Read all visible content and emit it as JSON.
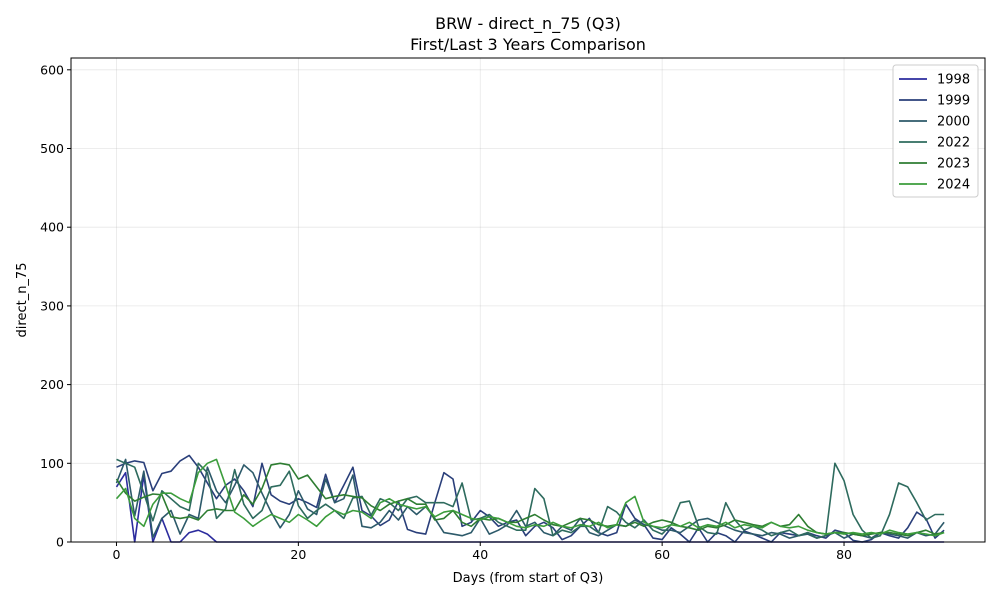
{
  "chart_data": {
    "type": "line",
    "title": "BRW - direct_n_75 (Q3)",
    "subtitle": "First/Last 3 Years Comparison",
    "xlabel": "Days (from start of Q3)",
    "ylabel": "direct_n_75",
    "xlim": [
      -5,
      95.5
    ],
    "ylim": [
      0,
      615
    ],
    "xticks": [
      0,
      20,
      40,
      60,
      80
    ],
    "yticks": [
      0,
      100,
      200,
      300,
      400,
      500,
      600
    ],
    "grid": true,
    "legend_position": "top-right",
    "series": [
      {
        "name": "1998",
        "color": "#2c2c9e",
        "values": [
          70,
          88,
          0,
          85,
          0,
          30,
          0,
          0,
          12,
          15,
          10,
          0,
          0,
          0,
          0,
          0,
          0,
          0,
          0,
          0,
          0,
          0,
          0,
          0,
          0,
          0,
          0,
          0,
          0,
          0,
          0,
          0,
          0,
          0,
          0,
          0,
          0,
          0,
          0,
          0,
          0,
          0,
          0,
          0,
          0,
          0,
          0,
          0,
          0,
          0,
          0,
          0,
          0,
          0,
          0,
          0,
          0,
          0,
          0,
          0,
          0,
          0,
          0,
          0,
          0,
          0,
          0,
          0,
          0,
          0,
          0,
          0,
          0,
          0,
          0,
          0,
          0,
          0,
          0,
          0,
          0,
          0,
          0,
          0,
          0,
          0,
          0,
          0,
          0,
          0,
          0,
          0
        ]
      },
      {
        "name": "1999",
        "color": "#2a3f7a",
        "values": [
          95,
          100,
          103,
          101,
          65,
          87,
          90,
          103,
          110,
          95,
          75,
          55,
          72,
          80,
          65,
          45,
          100,
          60,
          52,
          48,
          55,
          50,
          44,
          86,
          50,
          72,
          95,
          40,
          33,
          21,
          28,
          52,
          16,
          12,
          10,
          50,
          88,
          80,
          20,
          25,
          40,
          32,
          20,
          25,
          28,
          8,
          20,
          25,
          18,
          3,
          8,
          20,
          30,
          12,
          8,
          12,
          48,
          30,
          22,
          5,
          3,
          18,
          10,
          0,
          18,
          0,
          12,
          8,
          0,
          14,
          10,
          5,
          0,
          12,
          10,
          8,
          12,
          8,
          5,
          15,
          12,
          2,
          0,
          3,
          12,
          8,
          5,
          18,
          38,
          30,
          5,
          15
        ]
      },
      {
        "name": "2000",
        "color": "#2d5a6a",
        "values": [
          75,
          105,
          33,
          90,
          6,
          30,
          40,
          10,
          35,
          30,
          95,
          65,
          50,
          72,
          98,
          88,
          62,
          38,
          18,
          35,
          65,
          42,
          35,
          80,
          50,
          55,
          85,
          20,
          18,
          25,
          40,
          28,
          45,
          35,
          45,
          30,
          12,
          10,
          8,
          12,
          30,
          10,
          15,
          22,
          40,
          20,
          25,
          12,
          8,
          20,
          15,
          30,
          12,
          8,
          15,
          22,
          20,
          28,
          22,
          20,
          15,
          15,
          12,
          20,
          28,
          30,
          25,
          20,
          15,
          12,
          10,
          8,
          12,
          10,
          5,
          8,
          10,
          5,
          8,
          12,
          5,
          10,
          8,
          5,
          12,
          10,
          8,
          5,
          12,
          8,
          10,
          25
        ]
      },
      {
        "name": "2022",
        "color": "#2e6b5e",
        "values": [
          105,
          100,
          95,
          62,
          27,
          65,
          55,
          45,
          40,
          100,
          88,
          30,
          42,
          92,
          48,
          30,
          40,
          70,
          72,
          90,
          46,
          30,
          40,
          48,
          40,
          30,
          56,
          58,
          34,
          55,
          50,
          40,
          55,
          58,
          50,
          50,
          50,
          45,
          75,
          28,
          30,
          35,
          25,
          20,
          15,
          15,
          68,
          55,
          8,
          15,
          12,
          20,
          20,
          12,
          45,
          38,
          25,
          18,
          28,
          15,
          10,
          22,
          50,
          52,
          20,
          12,
          10,
          50,
          28,
          15,
          20,
          15,
          8,
          12,
          15,
          8,
          12,
          5,
          8,
          100,
          78,
          35,
          15,
          5,
          8,
          35,
          75,
          70,
          50,
          28,
          35,
          35
        ]
      },
      {
        "name": "2023",
        "color": "#2e7d32",
        "values": [
          80,
          62,
          52,
          57,
          61,
          60,
          32,
          30,
          32,
          28,
          40,
          42,
          40,
          40,
          60,
          48,
          68,
          98,
          100,
          98,
          80,
          85,
          70,
          55,
          58,
          60,
          58,
          56,
          46,
          40,
          48,
          52,
          55,
          48,
          48,
          28,
          30,
          40,
          25,
          20,
          30,
          28,
          30,
          25,
          25,
          30,
          35,
          28,
          22,
          20,
          25,
          30,
          28,
          22,
          20,
          22,
          20,
          25,
          20,
          25,
          28,
          25,
          20,
          18,
          15,
          20,
          18,
          22,
          28,
          25,
          22,
          20,
          25,
          20,
          22,
          35,
          20,
          12,
          10,
          12,
          12,
          10,
          8,
          10,
          12,
          12,
          10,
          8,
          12,
          15,
          10,
          12
        ]
      },
      {
        "name": "2024",
        "color": "#3c9d3c",
        "values": [
          55,
          68,
          30,
          20,
          48,
          62,
          62,
          55,
          50,
          88,
          100,
          105,
          72,
          38,
          30,
          20,
          28,
          35,
          30,
          25,
          35,
          28,
          20,
          32,
          40,
          35,
          40,
          38,
          30,
          50,
          55,
          48,
          45,
          42,
          45,
          32,
          38,
          40,
          35,
          30,
          28,
          32,
          30,
          25,
          20,
          18,
          22,
          20,
          25,
          20,
          18,
          22,
          20,
          25,
          18,
          22,
          50,
          58,
          25,
          20,
          18,
          22,
          20,
          25,
          18,
          22,
          20,
          25,
          18,
          22,
          20,
          18,
          25,
          20,
          18,
          20,
          15,
          12,
          10,
          12,
          10,
          12,
          10,
          12,
          10,
          15,
          12,
          10,
          12,
          10,
          8,
          12
        ]
      }
    ]
  }
}
